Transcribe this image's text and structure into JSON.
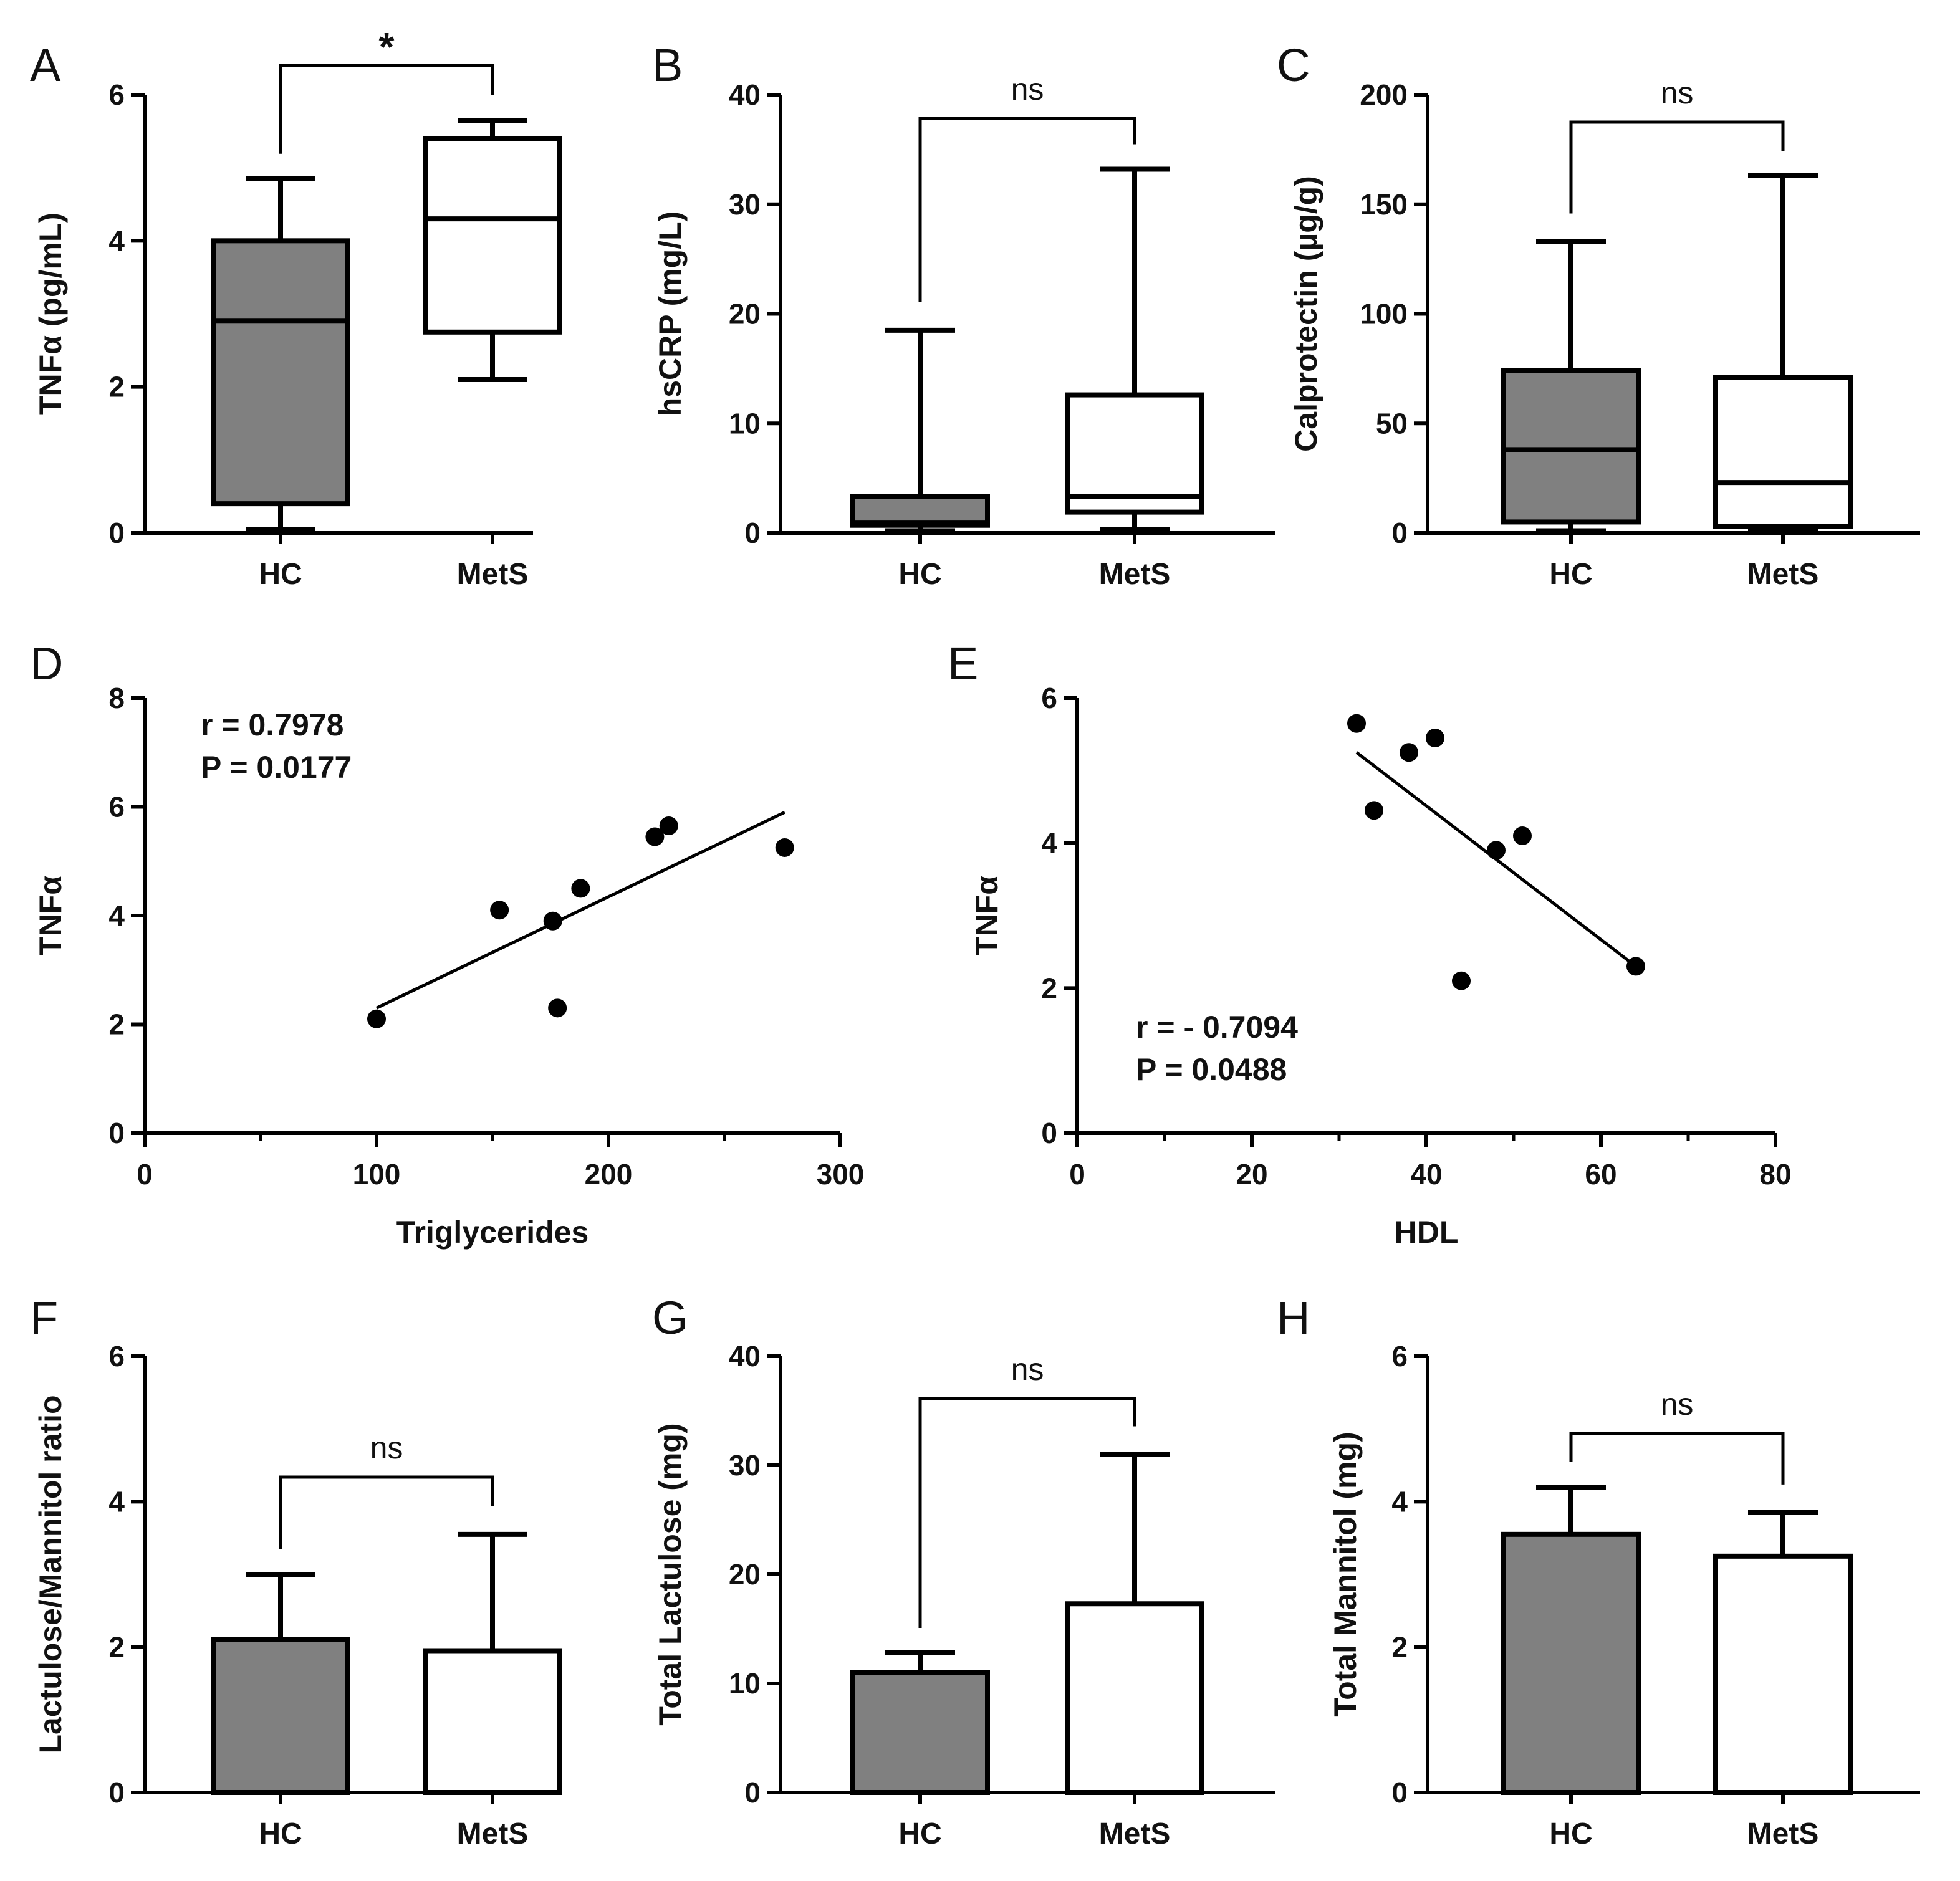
{
  "colors": {
    "hc_fill": "#808080",
    "mets_fill": "#ffffff",
    "stroke": "#000000"
  },
  "chart_data": [
    {
      "panel": "A",
      "type": "box",
      "ylabel": "TNFα (pg/mL)",
      "ylim": [
        0,
        6
      ],
      "yticks": [
        "0",
        "2",
        "4",
        "6"
      ],
      "categories": [
        "HC",
        "MetS"
      ],
      "boxes": [
        {
          "min": 0.05,
          "q1": 0.4,
          "median": 2.9,
          "q3": 4.0,
          "max": 4.85
        },
        {
          "min": 2.1,
          "q1": 2.75,
          "median": 4.3,
          "q3": 5.4,
          "max": 5.65
        }
      ],
      "significance": "*"
    },
    {
      "panel": "B",
      "type": "box",
      "ylabel": "hsCRP (mg/L)",
      "ylim": [
        0,
        40
      ],
      "yticks": [
        "0",
        "10",
        "20",
        "30",
        "40"
      ],
      "categories": [
        "HC",
        "MetS"
      ],
      "boxes": [
        {
          "min": 0.2,
          "q1": 0.7,
          "median": 0.9,
          "q3": 3.3,
          "max": 18.5
        },
        {
          "min": 0.3,
          "q1": 1.9,
          "median": 3.3,
          "q3": 12.6,
          "max": 33.2
        }
      ],
      "significance": "ns"
    },
    {
      "panel": "C",
      "type": "box",
      "ylabel": "Calprotectin (µg/g)",
      "ylim": [
        0,
        200
      ],
      "yticks": [
        "0",
        "50",
        "100",
        "150",
        "200"
      ],
      "categories": [
        "HC",
        "MetS"
      ],
      "boxes": [
        {
          "min": 1,
          "q1": 5,
          "median": 38,
          "q3": 74,
          "max": 133
        },
        {
          "min": 1,
          "q1": 3,
          "median": 23,
          "q3": 71,
          "max": 163
        }
      ],
      "significance": "ns"
    },
    {
      "panel": "D",
      "type": "scatter",
      "xlabel": "Triglycerides",
      "ylabel": "TNFα",
      "xlim": [
        0,
        300
      ],
      "ylim": [
        0,
        8
      ],
      "xticks": [
        "0",
        "100",
        "200",
        "300"
      ],
      "yticks": [
        "0",
        "2",
        "4",
        "6",
        "8"
      ],
      "points": [
        [
          100,
          2.1
        ],
        [
          153,
          4.1
        ],
        [
          176,
          3.9
        ],
        [
          178,
          2.3
        ],
        [
          188,
          4.5
        ],
        [
          220,
          5.45
        ],
        [
          226,
          5.65
        ],
        [
          276,
          5.25
        ]
      ],
      "fit": [
        [
          100,
          2.3
        ],
        [
          276,
          5.9
        ]
      ],
      "annotation": [
        "r = 0.7978",
        "P = 0.0177"
      ]
    },
    {
      "panel": "E",
      "type": "scatter",
      "xlabel": "HDL",
      "ylabel": "TNFα",
      "xlim": [
        0,
        80
      ],
      "ylim": [
        0,
        6
      ],
      "xticks": [
        "0",
        "20",
        "40",
        "60",
        "80"
      ],
      "yticks": [
        "0",
        "2",
        "4",
        "6"
      ],
      "points": [
        [
          32,
          5.65
        ],
        [
          34,
          4.45
        ],
        [
          38,
          5.25
        ],
        [
          41,
          5.45
        ],
        [
          44,
          2.1
        ],
        [
          48,
          3.9
        ],
        [
          51,
          4.1
        ],
        [
          64,
          2.3
        ]
      ],
      "fit": [
        [
          32,
          5.25
        ],
        [
          64,
          2.3
        ]
      ],
      "annotation": [
        "r = - 0.7094",
        "P = 0.0488"
      ]
    },
    {
      "panel": "F",
      "type": "bar",
      "ylabel": "Lactulose/Mannitol ratio",
      "ylim": [
        0,
        6
      ],
      "yticks": [
        "0",
        "2",
        "4",
        "6"
      ],
      "categories": [
        "HC",
        "MetS"
      ],
      "values": [
        2.1,
        1.95
      ],
      "errors": [
        3.0,
        3.55
      ],
      "significance": "ns"
    },
    {
      "panel": "G",
      "type": "bar",
      "ylabel": "Total Lactulose (mg)",
      "ylim": [
        0,
        40
      ],
      "yticks": [
        "0",
        "10",
        "20",
        "30",
        "40"
      ],
      "categories": [
        "HC",
        "MetS"
      ],
      "values": [
        11,
        17.3
      ],
      "errors": [
        12.8,
        31
      ],
      "significance": "ns"
    },
    {
      "panel": "H",
      "type": "bar",
      "ylabel": "Total Mannitol (mg)",
      "ylim": [
        0,
        6
      ],
      "yticks": [
        "0",
        "2",
        "4",
        "6"
      ],
      "categories": [
        "HC",
        "MetS"
      ],
      "values": [
        3.55,
        3.25
      ],
      "errors": [
        4.2,
        3.85
      ],
      "significance": "ns"
    }
  ]
}
